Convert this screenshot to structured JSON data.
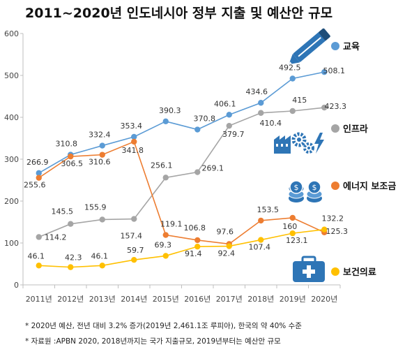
{
  "chart_data": {
    "type": "line",
    "title": "2011~2020년 인도네시아 정부 지출 및 예산안 규모",
    "categories": [
      "2011년",
      "2012년",
      "2013년",
      "2014년",
      "2015년",
      "2016년",
      "2017년",
      "2018년",
      "2019년",
      "2020년"
    ],
    "ylim": [
      0,
      600
    ],
    "yticks": [
      "0",
      "100",
      "200",
      "300",
      "400",
      "500",
      "600"
    ],
    "grid": false,
    "legend_position": "right",
    "series": [
      {
        "name": "교육",
        "color": "#5b9bd5",
        "icon": "pencil-icon",
        "values": [
          266.9,
          310.8,
          332.4,
          353.4,
          390.3,
          370.8,
          406.1,
          434.6,
          492.5,
          508.1
        ],
        "labels": [
          "266.9",
          "310.8",
          "332.4",
          "353.4",
          "390.3",
          "370.8",
          "406.1",
          "434.6",
          "492.5",
          "508.1"
        ]
      },
      {
        "name": "인프라",
        "color": "#a5a5a5",
        "icon": "factory-gears-icon",
        "values": [
          114.2,
          145.5,
          155.9,
          157.4,
          256.1,
          269.1,
          379.7,
          410.4,
          415,
          423.3
        ],
        "labels": [
          "114.2",
          "145.5",
          "155.9",
          "157.4",
          "256.1",
          "269.1",
          "379.7",
          "410.4",
          "415",
          "423.3"
        ]
      },
      {
        "name": "에너지 보조금",
        "color": "#ed7d31",
        "icon": "coins-icon",
        "values": [
          255.6,
          306.5,
          310.6,
          341.8,
          119.1,
          106.8,
          97.6,
          153.5,
          160,
          125.3
        ],
        "labels": [
          "255.6",
          "306.5",
          "310.6",
          "341.8",
          "119.1",
          "106.8",
          "97.6",
          "153.5",
          "160",
          "125.3"
        ]
      },
      {
        "name": "보건의료",
        "color": "#ffc000",
        "icon": "medical-kit-icon",
        "values": [
          46.1,
          42.3,
          46.1,
          59.7,
          69.3,
          91.4,
          92.4,
          107.4,
          123.1,
          132.2
        ],
        "labels": [
          "46.1",
          "42.3",
          "46.1",
          "59.7",
          "69.3",
          "91.4",
          "92.4",
          "107.4",
          "123.1",
          "132.2"
        ]
      }
    ]
  },
  "notes": [
    "* 2020년 예산, 전년 대비 3.2% 증가(2019년 2,461.1조 루피아), 한국의 약 40% 수준",
    "* 자료원 :APBN 2020, 2018년까지는 국가 지출규모, 2019년부터는 예산안 규모"
  ]
}
